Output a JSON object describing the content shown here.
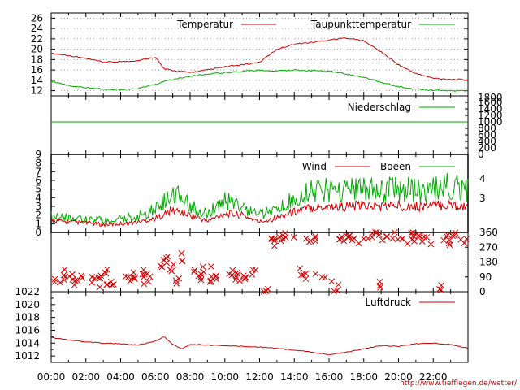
{
  "credit": "http://www.tiefflegen.de/wetter/",
  "chart_data": [
    {
      "type": "line",
      "panel": "temperature",
      "ylim": [
        11,
        27
      ],
      "yticks": [
        "12",
        "14",
        "16",
        "18",
        "20",
        "22",
        "24",
        "26"
      ],
      "grid": true,
      "legend_position": "top-right",
      "x_hours": [
        0,
        1,
        2,
        3,
        4,
        5,
        6,
        6.5,
        7,
        8,
        9,
        10,
        11,
        12,
        13,
        14,
        15,
        16,
        17,
        18,
        19,
        20,
        21,
        22,
        23,
        24
      ],
      "series": [
        {
          "name": "Temperatur",
          "color": "#cc0000",
          "values": [
            19.2,
            18.8,
            18.2,
            17.5,
            17.6,
            17.8,
            18.5,
            16.2,
            15.9,
            15.5,
            16.0,
            16.6,
            17.0,
            17.5,
            20.0,
            21.0,
            21.3,
            21.8,
            22.2,
            21.6,
            19.5,
            17.0,
            15.3,
            14.4,
            14.2,
            14.1
          ]
        },
        {
          "name": "Taupunkttemperatur",
          "color": "#00aa00",
          "values": [
            13.8,
            13.0,
            12.6,
            12.3,
            12.2,
            12.4,
            13.2,
            13.8,
            14.2,
            14.8,
            15.2,
            15.5,
            15.7,
            16.0,
            15.8,
            16.0,
            15.9,
            15.8,
            15.2,
            14.6,
            13.6,
            12.8,
            12.3,
            12.1,
            12.0,
            12.0
          ]
        }
      ]
    },
    {
      "type": "line",
      "panel": "precipitation",
      "legend_position": "top-right",
      "ylim": [
        0,
        1800
      ],
      "yticks": [
        "1800",
        "1600",
        "1400",
        "1200",
        "1000",
        "800",
        "600",
        "400",
        "200",
        "0"
      ],
      "series": [
        {
          "name": "Niederschlag",
          "color": "#00aa00",
          "values": [
            1000,
            1000
          ]
        }
      ]
    },
    {
      "type": "line",
      "panel": "wind",
      "legend_position": "top-right",
      "ylim": [
        0,
        9
      ],
      "yticks": [
        "0",
        "1",
        "2",
        "3",
        "4",
        "5",
        "6",
        "7",
        "8",
        "9"
      ],
      "right_ticks": [
        "4",
        "3"
      ],
      "x_hours": [
        0,
        1,
        2,
        3,
        4,
        5,
        6,
        7,
        8,
        9,
        10,
        11,
        12,
        13,
        14,
        15,
        16,
        17,
        18,
        19,
        20,
        21,
        22,
        23,
        24
      ],
      "series": [
        {
          "name": "Wind",
          "color": "#cc0000",
          "values": [
            1.4,
            1.2,
            1.1,
            0.9,
            1.0,
            1.2,
            1.6,
            2.6,
            2.0,
            1.3,
            2.2,
            2.0,
            1.2,
            1.7,
            2.4,
            2.9,
            3.0,
            3.0,
            3.1,
            3.0,
            3.1,
            3.0,
            3.1,
            3.2,
            3.0
          ]
        },
        {
          "name": "Boeen",
          "color": "#00aa00",
          "values": [
            2.0,
            1.7,
            1.5,
            1.4,
            1.5,
            1.9,
            2.6,
            4.6,
            3.1,
            2.1,
            3.7,
            3.0,
            2.0,
            2.7,
            3.8,
            4.7,
            4.9,
            4.9,
            5.0,
            4.8,
            5.1,
            4.8,
            5.1,
            5.4,
            4.8
          ]
        }
      ]
    },
    {
      "type": "scatter",
      "panel": "wind-direction",
      "ylim": [
        0,
        360
      ],
      "yticks": [
        "360",
        "270",
        "180",
        "90",
        "0"
      ],
      "marker": "x",
      "color": "#cc0000",
      "x_hours": [
        0.2,
        0.6,
        1.0,
        1.4,
        1.8,
        2.2,
        2.6,
        3.0,
        3.4,
        3.8,
        4.2,
        4.6,
        5.0,
        5.4,
        5.8,
        6.2,
        6.6,
        7.0,
        7.4,
        7.8,
        8.2,
        8.6,
        9.0,
        9.4,
        9.8,
        10.2,
        10.6,
        11.0,
        11.4,
        11.8,
        12.2,
        12.6,
        13.0,
        13.4,
        13.8,
        14.2,
        14.6,
        15.0,
        15.4,
        15.8,
        16.2,
        16.6,
        17.0,
        17.4,
        17.8,
        18.2,
        18.6,
        19.0,
        19.4,
        19.8,
        20.2,
        20.6,
        21.0,
        21.4,
        21.8,
        22.2,
        22.6,
        23.0,
        23.4,
        23.8
      ],
      "values": [
        60,
        85,
        110,
        60,
        90,
        75,
        95,
        40,
        130,
        60,
        80,
        100,
        70,
        130,
        85,
        170,
        200,
        140,
        60,
        210,
        120,
        90,
        140,
        70,
        85,
        110,
        70,
        100,
        90,
        120,
        10,
        300,
        330,
        320,
        340,
        120,
        310,
        100,
        330,
        80,
        20,
        310,
        340,
        330,
        300,
        330,
        350,
        40,
        330,
        340,
        300,
        320,
        350,
        330,
        310,
        20,
        330,
        300,
        340,
        320
      ]
    },
    {
      "type": "line",
      "panel": "pressure",
      "legend_position": "top-right",
      "ylim": [
        1011,
        1022
      ],
      "yticks": [
        "1012",
        "1014",
        "1016",
        "1018",
        "1020",
        "1022"
      ],
      "xticks": [
        "00:00",
        "02:00",
        "04:00",
        "06:00",
        "08:00",
        "10:00",
        "12:00",
        "14:00",
        "16:00",
        "18:00",
        "20:00",
        "22:00"
      ],
      "x_hours": [
        0,
        1,
        2,
        3,
        4,
        5,
        6,
        6.5,
        7,
        7.5,
        8,
        9,
        10,
        11,
        12,
        13,
        14,
        15,
        16,
        17,
        18,
        19,
        20,
        21,
        22,
        23,
        24
      ],
      "series": [
        {
          "name": "Luftdruck",
          "color": "#cc0000",
          "values": [
            1014.9,
            1014.5,
            1014.2,
            1014.0,
            1013.9,
            1013.7,
            1014.3,
            1015.0,
            1013.8,
            1013.1,
            1013.8,
            1013.7,
            1013.6,
            1013.5,
            1013.4,
            1013.2,
            1012.9,
            1012.6,
            1012.2,
            1012.6,
            1013.1,
            1013.6,
            1013.5,
            1013.9,
            1014.0,
            1013.8,
            1013.2
          ]
        }
      ]
    }
  ]
}
